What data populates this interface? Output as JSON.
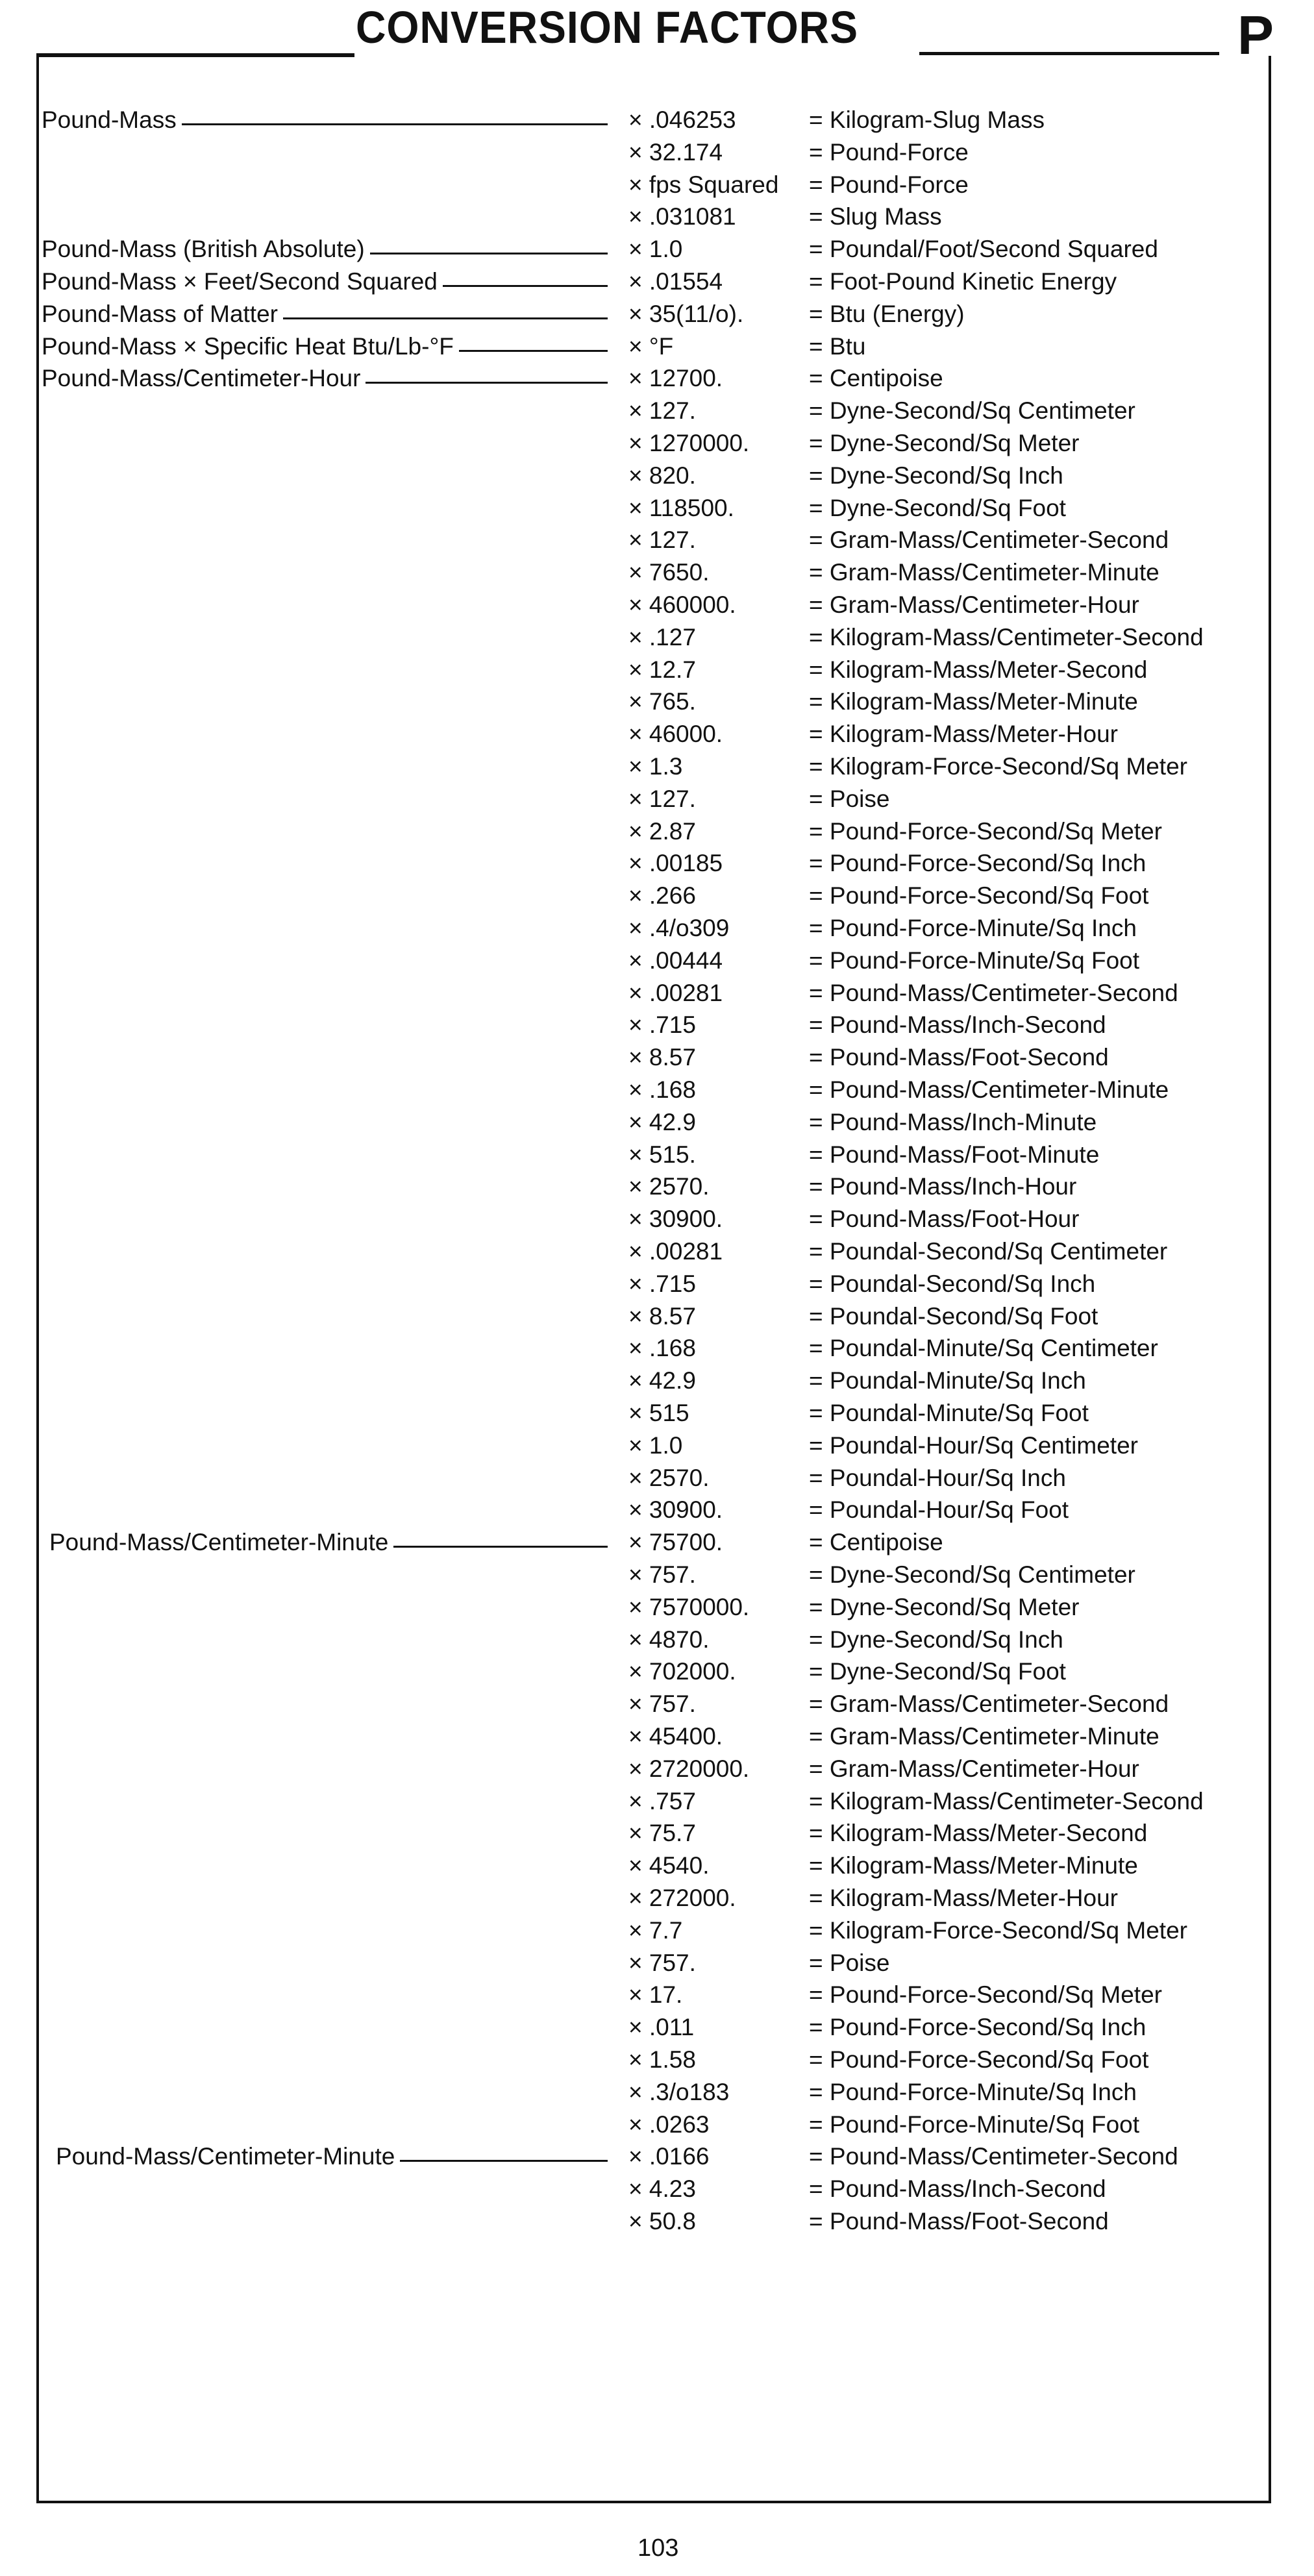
{
  "header": {
    "title": "CONVERSION FACTORS",
    "section_letter": "P"
  },
  "symbols": {
    "multiply": "×",
    "equals": "="
  },
  "rows": [
    {
      "label": "Pound-Mass",
      "factor": ".046253",
      "result": "Kilogram-Slug Mass"
    },
    {
      "label": "",
      "factor": "32.174",
      "result": "Pound-Force"
    },
    {
      "label": "",
      "factor": "fps Squared",
      "result": "Pound-Force"
    },
    {
      "label": "",
      "factor": ".031081",
      "result": "Slug Mass"
    },
    {
      "label": "Pound-Mass (British Absolute)",
      "factor": "1.0",
      "result": "Poundal/Foot/Second Squared"
    },
    {
      "label": "Pound-Mass × Feet/Second Squared",
      "factor": ".01554",
      "result": "Foot-Pound Kinetic Energy"
    },
    {
      "label": "Pound-Mass of Matter",
      "factor": "35(11/o).",
      "result": "Btu (Energy)"
    },
    {
      "label": "Pound-Mass × Specific Heat Btu/Lb-°F",
      "factor": "°F",
      "result": "Btu"
    },
    {
      "label": "Pound-Mass/Centimeter-Hour",
      "factor": "12700.",
      "result": "Centipoise"
    },
    {
      "label": "",
      "factor": "127.",
      "result": "Dyne-Second/Sq Centimeter"
    },
    {
      "label": "",
      "factor": "1270000.",
      "result": "Dyne-Second/Sq Meter"
    },
    {
      "label": "",
      "factor": "820.",
      "result": "Dyne-Second/Sq Inch"
    },
    {
      "label": "",
      "factor": "118500.",
      "result": "Dyne-Second/Sq Foot"
    },
    {
      "label": "",
      "factor": "127.",
      "result": "Gram-Mass/Centimeter-Second"
    },
    {
      "label": "",
      "factor": "7650.",
      "result": "Gram-Mass/Centimeter-Minute"
    },
    {
      "label": "",
      "factor": "460000.",
      "result": "Gram-Mass/Centimeter-Hour"
    },
    {
      "label": "",
      "factor": ".127",
      "result": "Kilogram-Mass/Centimeter-Second"
    },
    {
      "label": "",
      "factor": "12.7",
      "result": "Kilogram-Mass/Meter-Second"
    },
    {
      "label": "",
      "factor": "765.",
      "result": "Kilogram-Mass/Meter-Minute"
    },
    {
      "label": "",
      "factor": "46000.",
      "result": "Kilogram-Mass/Meter-Hour"
    },
    {
      "label": "",
      "factor": "1.3",
      "result": "Kilogram-Force-Second/Sq Meter"
    },
    {
      "label": "",
      "factor": "127.",
      "result": "Poise"
    },
    {
      "label": "",
      "factor": "2.87",
      "result": "Pound-Force-Second/Sq Meter"
    },
    {
      "label": "",
      "factor": ".00185",
      "result": "Pound-Force-Second/Sq Inch"
    },
    {
      "label": "",
      "factor": ".266",
      "result": "Pound-Force-Second/Sq Foot"
    },
    {
      "label": "",
      "factor": ".4/o309",
      "result": "Pound-Force-Minute/Sq Inch"
    },
    {
      "label": "",
      "factor": ".00444",
      "result": "Pound-Force-Minute/Sq Foot"
    },
    {
      "label": "",
      "factor": ".00281",
      "result": "Pound-Mass/Centimeter-Second"
    },
    {
      "label": "",
      "factor": ".715",
      "result": "Pound-Mass/Inch-Second"
    },
    {
      "label": "",
      "factor": "8.57",
      "result": "Pound-Mass/Foot-Second"
    },
    {
      "label": "",
      "factor": ".168",
      "result": "Pound-Mass/Centimeter-Minute"
    },
    {
      "label": "",
      "factor": "42.9",
      "result": "Pound-Mass/Inch-Minute"
    },
    {
      "label": "",
      "factor": "515.",
      "result": "Pound-Mass/Foot-Minute"
    },
    {
      "label": "",
      "factor": "2570.",
      "result": "Pound-Mass/Inch-Hour"
    },
    {
      "label": "",
      "factor": "30900.",
      "result": "Pound-Mass/Foot-Hour"
    },
    {
      "label": "",
      "factor": ".00281",
      "result": "Poundal-Second/Sq Centimeter"
    },
    {
      "label": "",
      "factor": ".715",
      "result": "Poundal-Second/Sq Inch"
    },
    {
      "label": "",
      "factor": "8.57",
      "result": "Poundal-Second/Sq Foot"
    },
    {
      "label": "",
      "factor": ".168",
      "result": "Poundal-Minute/Sq Centimeter"
    },
    {
      "label": "",
      "factor": "42.9",
      "result": "Poundal-Minute/Sq Inch"
    },
    {
      "label": "",
      "factor": "515",
      "result": "Poundal-Minute/Sq Foot"
    },
    {
      "label": "",
      "factor": "1.0",
      "result": "Poundal-Hour/Sq Centimeter"
    },
    {
      "label": "",
      "factor": "2570.",
      "result": "Poundal-Hour/Sq Inch"
    },
    {
      "label": "",
      "factor": "30900.",
      "result": "Poundal-Hour/Sq Foot"
    },
    {
      "label": "Pound-Mass/Centimeter-Minute",
      "factor": "75700.",
      "result": "Centipoise"
    },
    {
      "label": "",
      "factor": "757.",
      "result": "Dyne-Second/Sq Centimeter"
    },
    {
      "label": "",
      "factor": "7570000.",
      "result": "Dyne-Second/Sq Meter"
    },
    {
      "label": "",
      "factor": "4870.",
      "result": "Dyne-Second/Sq Inch"
    },
    {
      "label": "",
      "factor": "702000.",
      "result": "Dyne-Second/Sq Foot"
    },
    {
      "label": "",
      "factor": "757.",
      "result": "Gram-Mass/Centimeter-Second"
    },
    {
      "label": "",
      "factor": "45400.",
      "result": "Gram-Mass/Centimeter-Minute"
    },
    {
      "label": "",
      "factor": "2720000.",
      "result": "Gram-Mass/Centimeter-Hour"
    },
    {
      "label": "",
      "factor": ".757",
      "result": "Kilogram-Mass/Centimeter-Second"
    },
    {
      "label": "",
      "factor": "75.7",
      "result": "Kilogram-Mass/Meter-Second"
    },
    {
      "label": "",
      "factor": "4540.",
      "result": "Kilogram-Mass/Meter-Minute"
    },
    {
      "label": "",
      "factor": "272000.",
      "result": "Kilogram-Mass/Meter-Hour"
    },
    {
      "label": "",
      "factor": "7.7",
      "result": "Kilogram-Force-Second/Sq Meter"
    },
    {
      "label": "",
      "factor": "757.",
      "result": "Poise"
    },
    {
      "label": "",
      "factor": "17.",
      "result": "Pound-Force-Second/Sq Meter"
    },
    {
      "label": "",
      "factor": ".011",
      "result": "Pound-Force-Second/Sq Inch"
    },
    {
      "label": "",
      "factor": "1.58",
      "result": "Pound-Force-Second/Sq Foot"
    },
    {
      "label": "",
      "factor": ".3/o183",
      "result": "Pound-Force-Minute/Sq Inch"
    },
    {
      "label": "",
      "factor": ".0263",
      "result": "Pound-Force-Minute/Sq Foot"
    },
    {
      "label": "Pound-Mass/Centimeter-Minute",
      "factor": ".0166",
      "result": "Pound-Mass/Centimeter-Second"
    },
    {
      "label": "",
      "factor": "4.23",
      "result": "Pound-Mass/Inch-Second"
    },
    {
      "label": "",
      "factor": "50.8",
      "result": "Pound-Mass/Foot-Second"
    }
  ],
  "footer": {
    "page_number": "103"
  }
}
